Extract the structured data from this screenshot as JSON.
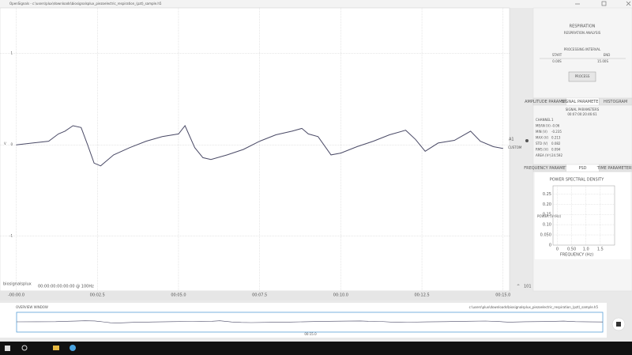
{
  "title_bar": {
    "title": "OpenSignals - c:\\users\\plux\\downloads\\biosignalsplux_piezoelectric_respiration_(pzt)_sample.h5"
  },
  "main_plot": {
    "y_label": "V",
    "xlim": [
      -0.5,
      15.2
    ],
    "ylim": [
      -1.6,
      1.5
    ],
    "yticks": [
      1,
      0,
      -1
    ],
    "xticks": [
      {
        "value": 0,
        "label": "-00:00.0"
      },
      {
        "value": 2.5,
        "label": "00:02.5"
      },
      {
        "value": 5,
        "label": "00:05.0"
      },
      {
        "value": 7.5,
        "label": "00:07.5"
      },
      {
        "value": 10,
        "label": "00:10.0"
      },
      {
        "value": 12.5,
        "label": "00:12.5"
      },
      {
        "value": 15,
        "label": "00:15.0"
      }
    ],
    "color": "#4a4a66",
    "x": [
      0,
      0.5,
      1,
      1.3,
      1.5,
      1.75,
      2,
      2.2,
      2.4,
      2.6,
      3,
      3.5,
      4,
      4.5,
      5,
      5.2,
      5.5,
      5.75,
      6,
      6.5,
      7,
      7.5,
      8,
      8.5,
      8.8,
      9,
      9.3,
      9.7,
      10,
      10.5,
      11,
      11.5,
      12,
      12.3,
      12.6,
      13,
      13.5,
      14,
      14.3,
      14.7,
      15
    ],
    "values": [
      0,
      0.02,
      0.04,
      0.12,
      0.15,
      0.21,
      0.19,
      0,
      -0.2,
      -0.23,
      -0.11,
      -0.03,
      0.04,
      0.09,
      0.12,
      0.21,
      -0.03,
      -0.14,
      -0.16,
      -0.11,
      -0.05,
      0.04,
      0.11,
      0.15,
      0.18,
      0.12,
      0.09,
      -0.11,
      -0.09,
      -0.02,
      0.04,
      0.11,
      0.16,
      0.06,
      -0.07,
      0.02,
      0.05,
      0.15,
      0.04,
      -0.02,
      -0.04
    ]
  },
  "channel": {
    "label": "A1",
    "type": "CUSTOM"
  },
  "status": {
    "logo": "biosignalsplux",
    "time": "00:00:00:00:00:00 @ 100Hz",
    "zoom": "101"
  },
  "panel": {
    "title": "RESPIRATION",
    "subtitle": "RESPIRATION ANALYSIS",
    "interval_title": "PROCESSING INTERVAL",
    "start_label": "START",
    "end_label": "END",
    "start": "0.00S",
    "end": "15.00S",
    "button": "PROCESS",
    "tabs1": [
      "AMPLITUDE PARAMETERS",
      "SIGNAL PARAMETERS",
      "HISTOGRAM"
    ],
    "params_title": "SIGNAL PARAMETERS",
    "params_time": "00:07:00:20:46:61",
    "params": [
      [
        "CHANNEL",
        "1"
      ],
      [
        "MEAN (V)",
        "-0.06"
      ],
      [
        "MIN (V)",
        "-0.235"
      ],
      [
        "MAX (V)",
        "0.213"
      ],
      [
        "STD (V)",
        "0.082"
      ],
      [
        "RMS (V)",
        "0.094"
      ],
      [
        "AREA (V²)",
        "24.592"
      ]
    ],
    "tabs2": [
      "FREQUENCY PARAMETERS",
      "PSD",
      "TIME PARAMETERS"
    ]
  },
  "psd": {
    "title": "POWER SPECTRAL DENSITY",
    "y_label": "POWER (V²/Hz)",
    "x_label": "FREQUENCY (Hz)",
    "xlim": [
      -0.15,
      2
    ],
    "ylim": [
      0,
      0.29
    ],
    "yticks": [
      0.25,
      {
        "value": 0.2,
        "label": "0.20"
      },
      0.15,
      {
        "value": 0.1,
        "label": "0.10"
      },
      {
        "value": 0.05,
        "label": "0.050"
      },
      0
    ],
    "xticks": [
      0,
      {
        "value": 0.5,
        "label": "0.50"
      },
      {
        "value": 1,
        "label": "1.0"
      },
      1.5
    ]
  },
  "overview": {
    "title": "OVERVIEW WINDOW",
    "file": "c:\\users\\plux\\downloads\\biosignalsplux_piezoelectric_respiration_(pzt)_sample.h5",
    "end_time": "00:15.0"
  }
}
